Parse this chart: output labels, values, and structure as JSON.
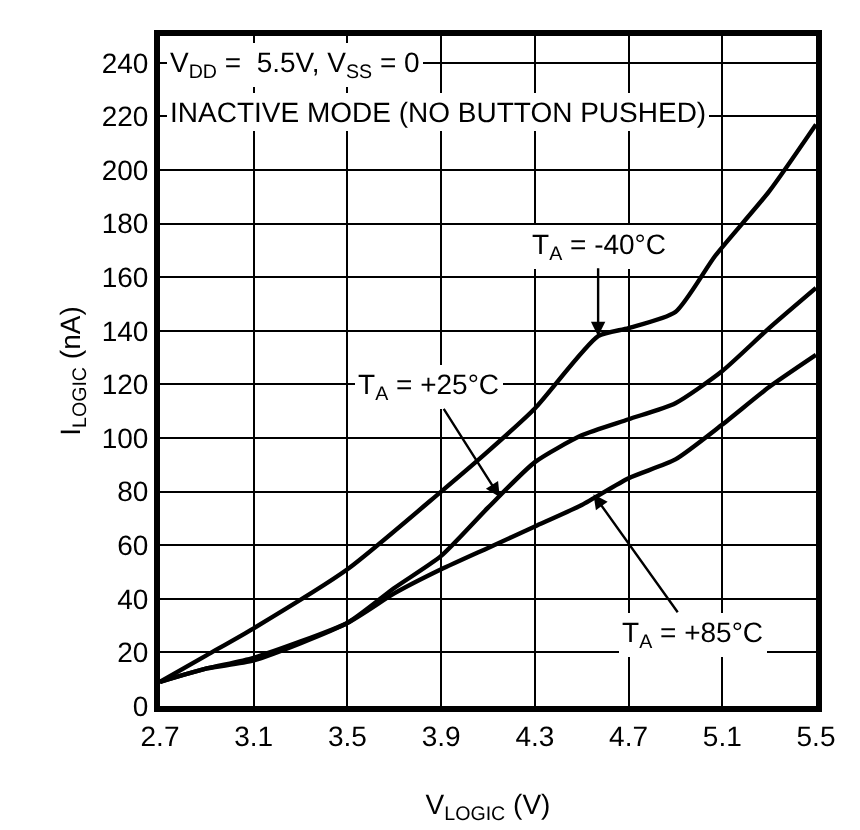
{
  "chart_data": {
    "type": "line",
    "xlabel": "V$_{LOGIC}$ (V)",
    "ylabel": "I$_{LOGIC}$ (nA)",
    "series": [
      {
        "color": "#000000",
        "x": [
          2.7,
          2.9,
          3.1,
          3.5,
          3.9,
          4.1,
          4.3,
          4.57,
          4.7,
          4.9,
          5.07,
          5.3,
          5.5
        ],
        "values": [
          9,
          19,
          29,
          51,
          80,
          95,
          111,
          138,
          141,
          147,
          168,
          192,
          217
        ]
      },
      {
        "color": "#000000",
        "x": [
          2.7,
          2.9,
          3.1,
          3.5,
          3.7,
          3.9,
          4.1,
          4.3,
          4.5,
          4.7,
          4.9,
          5.1,
          5.3,
          5.5
        ],
        "values": [
          9,
          14,
          17,
          31,
          44,
          56,
          74,
          91,
          101,
          107,
          113,
          125,
          141,
          156
        ]
      },
      {
        "color": "#000000",
        "x": [
          2.7,
          2.9,
          3.1,
          3.5,
          3.7,
          3.9,
          4.1,
          4.3,
          4.5,
          4.7,
          4.9,
          5.1,
          5.3,
          5.5
        ],
        "values": [
          9,
          14,
          18,
          31,
          42,
          51,
          59,
          67,
          75,
          85,
          92,
          105,
          119,
          131
        ]
      }
    ],
    "xlim": [
      2.7,
      5.5
    ],
    "xticks": [
      {
        "value": 2.7,
        "label": "2.7"
      },
      {
        "value": 3.1,
        "label": "3.1"
      },
      {
        "value": 3.5,
        "label": "3.5"
      },
      {
        "value": 3.9,
        "label": "3.9"
      },
      {
        "value": 4.3,
        "label": "4.3"
      },
      {
        "value": 4.7,
        "label": "4.7"
      },
      {
        "value": 5.1,
        "label": "5.1"
      },
      {
        "value": 5.5,
        "label": "5.5"
      }
    ],
    "ylim": [
      0,
      250
    ],
    "yticks": [
      0,
      20,
      40,
      60,
      80,
      100,
      120,
      140,
      160,
      180,
      200,
      220,
      240
    ],
    "grid": true,
    "marker": "none",
    "line_style": "solid",
    "annotations": [
      "V$_{DD}$ =  5.5V, V$_{SS}$ = 0",
      "INACTIVE MODE (NO BUTTON PUSHED)",
      {
        "text": "T$_{A}$ = -40°C",
        "x": 4.57,
        "y": 138
      },
      {
        "text": "T$_{A}$ = +25°C",
        "x": 4.15,
        "y": 78
      },
      {
        "text": "T$_{A}$ = +85°C",
        "x": 4.55,
        "y": 79
      }
    ]
  }
}
